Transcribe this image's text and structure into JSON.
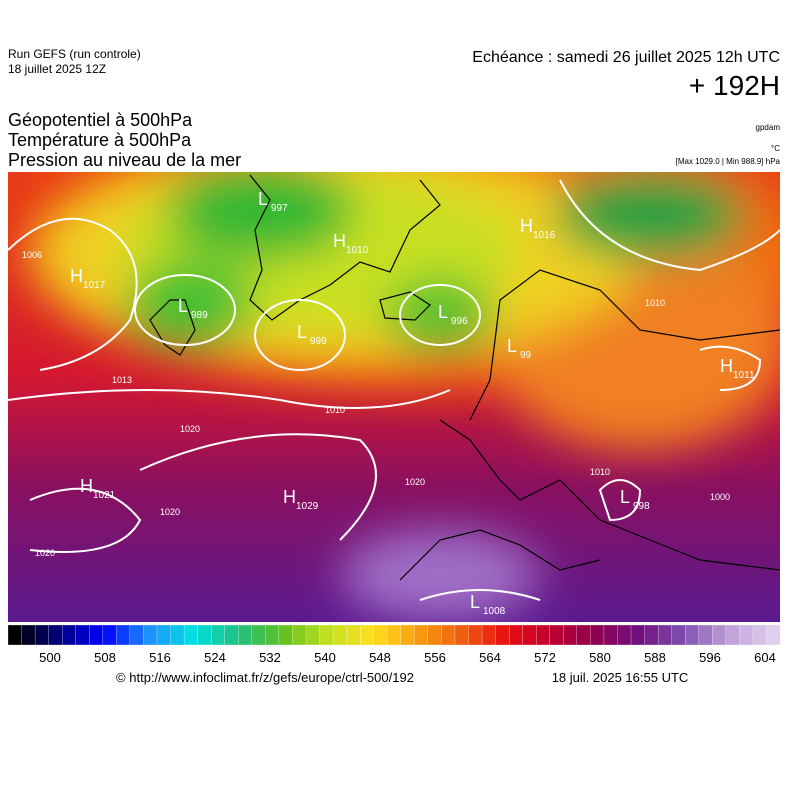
{
  "header": {
    "run": "Run GEFS (run controle)",
    "run_date": "18 juillet 2025 12Z",
    "echeance": "Echéance : samedi 26 juillet 2025 12h UTC",
    "horizon": "+ 192H"
  },
  "titles": [
    "Géopotentiel à 500hPa",
    "Température à 500hPa",
    "Pression au niveau de la mer"
  ],
  "units": {
    "geopotential": "gpdam",
    "temperature": "°C",
    "pressure": "[Max 1029.0 | Min 988.9] hPa"
  },
  "pressure_centers": [
    {
      "type": "H",
      "value": "1017"
    },
    {
      "type": "L",
      "value": "989"
    },
    {
      "type": "L",
      "value": "997"
    },
    {
      "type": "H",
      "value": "1010"
    },
    {
      "type": "L",
      "value": "999"
    },
    {
      "type": "L",
      "value": "996"
    },
    {
      "type": "H",
      "value": "1016"
    },
    {
      "type": "L",
      "value": "99"
    },
    {
      "type": "H",
      "value": "1011"
    },
    {
      "type": "H",
      "value": "1021"
    },
    {
      "type": "H",
      "value": "1029"
    },
    {
      "type": "L",
      "value": "998"
    },
    {
      "type": "L",
      "value": "1008"
    }
  ],
  "isobar_labels": [
    "1006",
    "1013",
    "1010",
    "1010",
    "1020",
    "1020",
    "1020",
    "1020",
    "1010",
    "1000"
  ],
  "colorbar": {
    "colors": [
      "#000000",
      "#000080",
      "#0000ff",
      "#1e90ff",
      "#00e0e0",
      "#20c080",
      "#60c020",
      "#c0e020",
      "#ffe020",
      "#f8a010",
      "#f06010",
      "#e81010",
      "#c00030",
      "#900050",
      "#701080",
      "#8050b0",
      "#c0a0d8",
      "#e0d0f0"
    ],
    "ticks": [
      500,
      508,
      516,
      524,
      532,
      540,
      548,
      556,
      564,
      572,
      580,
      588,
      596,
      604
    ]
  },
  "footer": {
    "source": "© http://www.infoclimat.fr/z/gefs/europe/ctrl-500/192",
    "generated": "18 juil. 2025 16:55 UTC"
  }
}
